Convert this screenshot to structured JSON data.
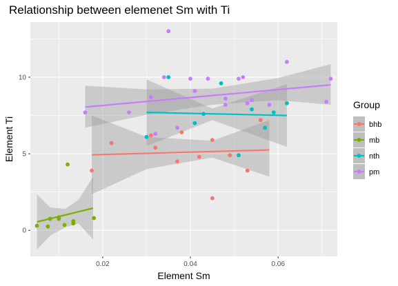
{
  "chart_data": {
    "type": "scatter",
    "title": "Relationship between elemenet Sm with Ti",
    "xlabel": "Element Sm",
    "ylabel": "Element Ti",
    "xlim": [
      0.0035,
      0.0735
    ],
    "ylim": [
      -1.7,
      13.6
    ],
    "x_ticks": [
      0.02,
      0.04,
      0.06
    ],
    "x_tick_labels": [
      "0.02",
      "0.04",
      "0.06"
    ],
    "y_ticks": [
      0,
      5,
      10
    ],
    "y_tick_labels": [
      "0",
      "5",
      "10"
    ],
    "grid": true,
    "legend": {
      "title": "Group",
      "position": "right"
    },
    "series": [
      {
        "name": "bhb",
        "color": "#F8766D",
        "x": [
          0.0175,
          0.022,
          0.031,
          0.032,
          0.037,
          0.038,
          0.042,
          0.045,
          0.045,
          0.049,
          0.051,
          0.053,
          0.056
        ],
        "y": [
          3.9,
          5.7,
          6.2,
          5.4,
          4.5,
          6.4,
          4.8,
          5.9,
          2.1,
          4.9,
          4.9,
          3.9,
          7.2
        ],
        "trend": {
          "x": [
            0.0175,
            0.058
          ],
          "y": [
            4.93,
            5.25
          ]
        },
        "band": {
          "x": [
            0.0175,
            0.03,
            0.045,
            0.058
          ],
          "upper": [
            7.5,
            6.1,
            5.85,
            7.2
          ],
          "lower": [
            2.35,
            4.0,
            4.75,
            3.5
          ]
        }
      },
      {
        "name": "mb",
        "color": "#7CAE00",
        "x": [
          0.005,
          0.0075,
          0.008,
          0.01,
          0.01,
          0.0113,
          0.012,
          0.0133,
          0.0133,
          0.018
        ],
        "y": [
          0.3,
          0.25,
          0.75,
          0.75,
          0.85,
          0.35,
          4.3,
          0.6,
          0.45,
          0.8
        ],
        "trend": {
          "x": [
            0.005,
            0.0178
          ],
          "y": [
            0.55,
            1.45
          ]
        },
        "band": {
          "x": [
            0.005,
            0.008,
            0.0115,
            0.0145,
            0.0178
          ],
          "upper": [
            2.35,
            1.5,
            1.4,
            2.0,
            3.5
          ],
          "lower": [
            -1.25,
            -0.35,
            0.2,
            0.45,
            -0.6
          ]
        }
      },
      {
        "name": "nth",
        "color": "#00BFC4",
        "x": [
          0.03,
          0.035,
          0.041,
          0.043,
          0.047,
          0.051,
          0.054,
          0.057,
          0.059,
          0.062
        ],
        "y": [
          6.1,
          10.0,
          7.0,
          7.6,
          9.6,
          4.9,
          7.9,
          6.7,
          7.7,
          8.3
        ],
        "trend": {
          "x": [
            0.03,
            0.062
          ],
          "y": [
            7.7,
            7.5
          ]
        },
        "band": {
          "x": [
            0.03,
            0.045,
            0.062
          ],
          "upper": [
            9.85,
            7.95,
            9.55
          ],
          "lower": [
            5.5,
            7.2,
            5.45
          ]
        }
      },
      {
        "name": "pm",
        "color": "#C77CFF",
        "x": [
          0.016,
          0.026,
          0.031,
          0.032,
          0.034,
          0.035,
          0.037,
          0.04,
          0.041,
          0.044,
          0.048,
          0.048,
          0.051,
          0.052,
          0.053,
          0.054,
          0.058,
          0.062,
          0.071,
          0.072
        ],
        "y": [
          7.7,
          7.7,
          8.7,
          6.3,
          10.0,
          13.0,
          6.7,
          9.9,
          9.1,
          9.9,
          8.6,
          8.2,
          9.9,
          10.0,
          8.3,
          8.5,
          8.2,
          11.0,
          8.4,
          9.9
        ],
        "trend": {
          "x": [
            0.016,
            0.072
          ],
          "y": [
            8.05,
            9.5
          ]
        },
        "band": {
          "x": [
            0.016,
            0.03,
            0.045,
            0.06,
            0.072
          ],
          "upper": [
            9.45,
            9.2,
            9.25,
            9.95,
            10.85
          ],
          "lower": [
            6.7,
            7.55,
            8.2,
            8.5,
            8.2
          ]
        }
      }
    ]
  }
}
